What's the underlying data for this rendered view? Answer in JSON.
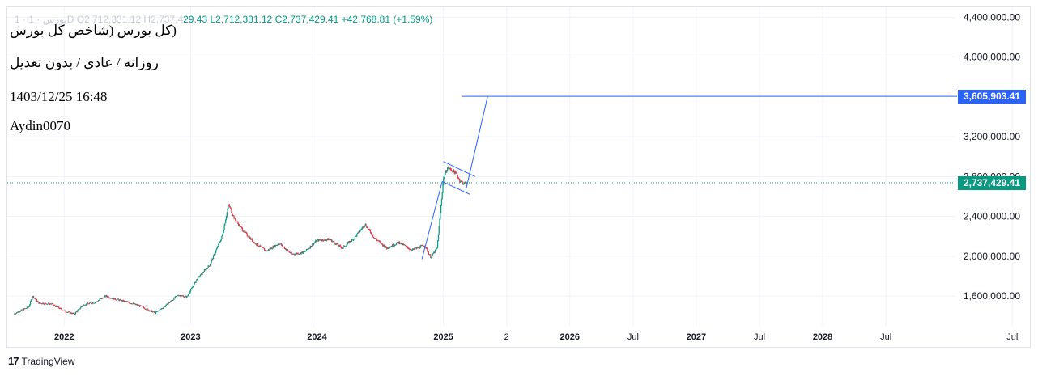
{
  "legend": {
    "faded_prefix": "1 · بورس · 1D   O2,712,331.12   H2,737,4",
    "rest": "29.43   L2,712,331.12   C2,737,429.41   +42,768.81 (+1.59%)"
  },
  "notes": {
    "title": "(کل بورس (شاخص کل بورس",
    "settings": "روزانه / عادی / بدون تعدیل",
    "datetime": "1403/12/25 16:48",
    "author": "Aydin0070"
  },
  "price_tags": {
    "target": "3,605,903.41",
    "last": "2,737,429.41"
  },
  "footer": {
    "brand": "TradingView"
  },
  "colors": {
    "up": "#089981",
    "down": "#f23645",
    "drawing": "#2962ff",
    "grid": "#f0f3fa"
  },
  "chart_data": {
    "type": "candlestick",
    "title": "",
    "y_axis": {
      "min": 1300000,
      "max": 4500000,
      "ticks": [
        "1,600,000.00",
        "2,000,000.00",
        "2,400,000.00",
        "2,800,000.00",
        "3,200,000.00",
        "4,000,000.00",
        "4,400,000.00"
      ],
      "tick_values": [
        1600000,
        2000000,
        2400000,
        2800000,
        3200000,
        4000000,
        4400000
      ]
    },
    "x_axis": {
      "labels": [
        "2022",
        "2023",
        "2024",
        "2025",
        "2",
        "Jul",
        "2026",
        "Jul",
        "2027",
        "Jul",
        "2028",
        "Jul"
      ],
      "label_values": [
        2022.0,
        2023.0,
        2024.0,
        2025.0,
        2025.5,
        2026.5,
        2026.0,
        2027.5,
        2027.0,
        2028.5,
        2028.0,
        2029.5
      ],
      "min": 2021.55,
      "max": 2029.05
    },
    "trend": [
      [
        2021.6,
        1420000
      ],
      [
        2021.72,
        1490000
      ],
      [
        2021.75,
        1600000
      ],
      [
        2021.8,
        1530000
      ],
      [
        2021.9,
        1520000
      ],
      [
        2022.0,
        1450000
      ],
      [
        2022.08,
        1420000
      ],
      [
        2022.15,
        1510000
      ],
      [
        2022.25,
        1540000
      ],
      [
        2022.33,
        1600000
      ],
      [
        2022.4,
        1570000
      ],
      [
        2022.5,
        1540000
      ],
      [
        2022.6,
        1500000
      ],
      [
        2022.72,
        1430000
      ],
      [
        2022.8,
        1500000
      ],
      [
        2022.9,
        1610000
      ],
      [
        2022.97,
        1590000
      ],
      [
        2023.05,
        1770000
      ],
      [
        2023.15,
        1910000
      ],
      [
        2023.25,
        2200000
      ],
      [
        2023.3,
        2520000
      ],
      [
        2023.35,
        2370000
      ],
      [
        2023.42,
        2250000
      ],
      [
        2023.5,
        2140000
      ],
      [
        2023.6,
        2050000
      ],
      [
        2023.7,
        2130000
      ],
      [
        2023.8,
        2020000
      ],
      [
        2023.9,
        2040000
      ],
      [
        2024.0,
        2160000
      ],
      [
        2024.1,
        2170000
      ],
      [
        2024.2,
        2080000
      ],
      [
        2024.3,
        2190000
      ],
      [
        2024.38,
        2320000
      ],
      [
        2024.45,
        2190000
      ],
      [
        2024.55,
        2080000
      ],
      [
        2024.65,
        2140000
      ],
      [
        2024.75,
        2060000
      ],
      [
        2024.85,
        2110000
      ],
      [
        2024.9,
        1990000
      ],
      [
        2024.95,
        2080000
      ],
      [
        2024.98,
        2500000
      ],
      [
        2025.0,
        2780000
      ],
      [
        2025.03,
        2890000
      ],
      [
        2025.07,
        2860000
      ],
      [
        2025.1,
        2830000
      ],
      [
        2025.13,
        2760000
      ],
      [
        2025.16,
        2730000
      ],
      [
        2025.18,
        2737429
      ]
    ],
    "drawings": {
      "target_price": 3605903.41,
      "last_price": 2737429.41,
      "flag_upper": [
        [
          2025.0,
          2950000
        ],
        [
          2025.25,
          2800000
        ]
      ],
      "flag_lower": [
        [
          2024.99,
          2750000
        ],
        [
          2025.21,
          2620000
        ]
      ],
      "pole": [
        [
          2024.83,
          1970000
        ],
        [
          2024.99,
          2750000
        ]
      ],
      "projection": [
        [
          2025.18,
          2680000
        ],
        [
          2025.35,
          3605903
        ]
      ],
      "target_line_start": 2025.15
    }
  }
}
